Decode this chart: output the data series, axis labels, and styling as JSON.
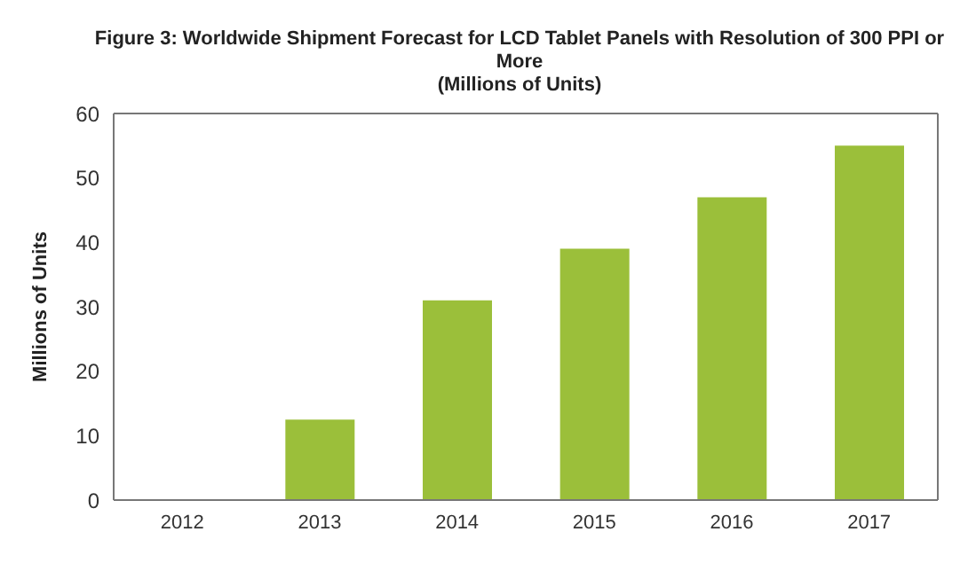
{
  "chart_data": {
    "type": "bar",
    "title": "Figure 3: Worldwide Shipment Forecast for LCD Tablet Panels with Resolution of 300 PPI or More",
    "subtitle": "(Millions of Units)",
    "ylabel": "Millions of Units",
    "categories": [
      "2012",
      "2013",
      "2014",
      "2015",
      "2016",
      "2017"
    ],
    "values": [
      0,
      12.5,
      31,
      39,
      47,
      55
    ],
    "color": "#9bbf3a",
    "ylim": [
      0,
      60
    ],
    "yticks": [
      0,
      10,
      20,
      30,
      40,
      50,
      60
    ],
    "grid": false
  }
}
